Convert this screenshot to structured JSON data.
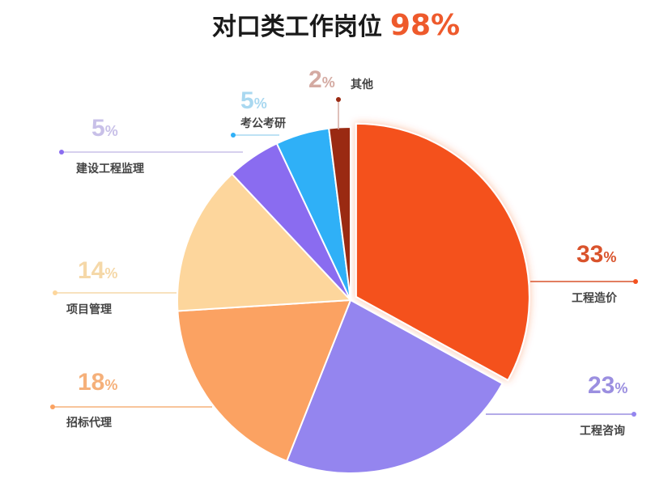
{
  "chart_data": {
    "type": "pie",
    "title": "对口类工作岗位",
    "title_value": "98%",
    "start": "12 o'clock, clockwise",
    "exploded": "工程造价",
    "slices": [
      {
        "label": "工程造价",
        "value": 33,
        "color": "#f4511e",
        "label_color": "#d9532c"
      },
      {
        "label": "工程咨询",
        "value": 23,
        "color": "#9485ef",
        "label_color": "#9b8fe0"
      },
      {
        "label": "招标代理",
        "value": 18,
        "color": "#fba262",
        "label_color": "#f5b07a"
      },
      {
        "label": "项目管理",
        "value": 14,
        "color": "#fdd69c",
        "label_color": "#f5d8a8"
      },
      {
        "label": "建设工程监理",
        "value": 5,
        "color": "#8a6cf0",
        "label_color": "#c8c0e8"
      },
      {
        "label": "考公考研",
        "value": 5,
        "color": "#2fb0f7",
        "label_color": "#a9d8f0"
      },
      {
        "label": "其他",
        "value": 2,
        "color": "#9a2a12",
        "label_color": "#d4aaa2"
      }
    ]
  }
}
